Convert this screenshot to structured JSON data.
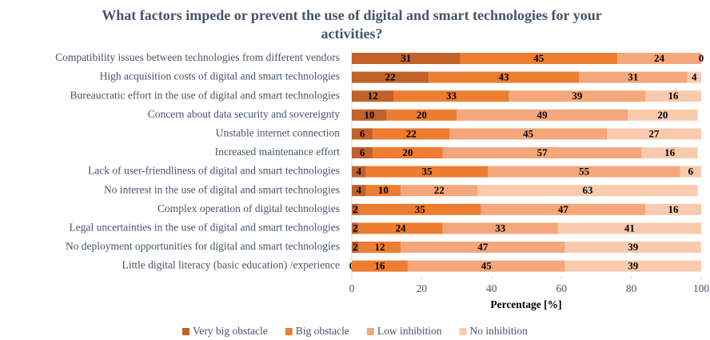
{
  "chart_data": {
    "type": "stacked-bar-horizontal",
    "title": "What factors impede or prevent the use of digital and smart technologies for your activities?",
    "xlabel": "Percentage [%]",
    "categories": [
      "Compatibility issues between technologies from different vendors",
      "High acquisition costs of digital and smart technologies",
      "Bureaucratic effort in the use of digital and smart technologies",
      "Concern about data security and sovereignty",
      "Unstable internet connection",
      "Increased maintenance effort",
      "Lack of user-friendliness of digital and smart technologies",
      "No interest in the use of digital and smart technologies",
      "Complex operation of digital technologies",
      "Legal uncertainties in the use of digital and smart technologies",
      "No deployment opportunities for digital and smart technologies",
      "Little digital literacy (basic education) /experience"
    ],
    "series": [
      {
        "name": "Very big obstacle",
        "color": "#c0622a",
        "values": [
          31,
          22,
          12,
          10,
          6,
          6,
          4,
          4,
          2,
          2,
          2,
          0
        ]
      },
      {
        "name": "Big obstacle",
        "color": "#ed7d31",
        "values": [
          45,
          43,
          33,
          20,
          22,
          20,
          35,
          10,
          35,
          24,
          12,
          16
        ]
      },
      {
        "name": "Low inhibition",
        "color": "#f4a77a",
        "values": [
          24,
          31,
          39,
          49,
          45,
          57,
          55,
          22,
          47,
          33,
          47,
          45
        ]
      },
      {
        "name": "No inhibition",
        "color": "#f8cbad",
        "values": [
          0,
          4,
          16,
          20,
          27,
          16,
          6,
          63,
          16,
          41,
          39,
          39
        ]
      }
    ],
    "xlim": [
      0,
      100
    ],
    "xticks": [
      0,
      20,
      40,
      60,
      80,
      100
    ],
    "legend": "bottom"
  }
}
